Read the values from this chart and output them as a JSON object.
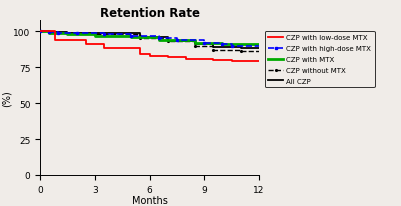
{
  "title": "Retention Rate",
  "ylabel": "(%)",
  "xlabel": "Months",
  "ylim": [
    0,
    108
  ],
  "xlim": [
    0,
    12
  ],
  "yticks": [
    0,
    25,
    50,
    75,
    100
  ],
  "xticks": [
    0,
    3,
    6,
    9,
    12
  ],
  "bg_color": "#f0ece8",
  "red_x": [
    0,
    0.8,
    0.8,
    2.5,
    2.5,
    3.5,
    3.5,
    5.5,
    5.5,
    6.0,
    6.0,
    7.0,
    7.0,
    8.0,
    8.0,
    9.5,
    9.5,
    10.5,
    10.5,
    12
  ],
  "red_y": [
    100,
    100,
    94,
    94,
    91,
    91,
    88,
    88,
    84,
    84,
    83,
    83,
    82,
    82,
    81,
    81,
    80,
    80,
    79,
    79
  ],
  "blue_x": [
    0,
    0.5,
    0.5,
    1.0,
    1.0,
    2.0,
    2.0,
    3.5,
    3.5,
    5.0,
    5.0,
    6.5,
    6.5,
    7.5,
    7.5,
    9.0,
    9.0,
    10.0,
    10.0,
    10.5,
    10.5,
    12
  ],
  "blue_y": [
    100,
    100,
    99.5,
    99.5,
    99,
    99,
    98.5,
    98.5,
    98,
    98,
    97,
    97,
    95,
    95,
    94,
    94,
    92,
    92,
    91,
    91,
    90,
    90
  ],
  "green_x": [
    0,
    0.5,
    0.5,
    1.5,
    1.5,
    3.0,
    3.0,
    5.0,
    5.0,
    6.5,
    6.5,
    8.5,
    8.5,
    10.0,
    10.0,
    12
  ],
  "green_y": [
    100,
    100,
    99,
    99,
    98,
    98,
    97,
    97,
    96,
    96,
    94,
    94,
    92,
    92,
    91,
    91
  ],
  "bdash_x": [
    0,
    0.5,
    0.5,
    1.5,
    1.5,
    3.0,
    3.0,
    5.5,
    5.5,
    7.0,
    7.0,
    8.5,
    8.5,
    9.5,
    9.5,
    11.0,
    11.0,
    12
  ],
  "bdash_y": [
    100,
    100,
    99.5,
    99.5,
    99,
    99,
    98,
    98,
    95,
    95,
    93,
    93,
    90,
    90,
    87,
    87,
    86,
    86
  ],
  "bsolid_x": [
    0,
    0.5,
    0.5,
    1.5,
    1.5,
    3.0,
    3.0,
    5.5,
    5.5,
    7.0,
    7.0,
    8.5,
    8.5,
    9.5,
    9.5,
    11.0,
    11.0,
    12
  ],
  "bsolid_y": [
    100,
    100,
    99.5,
    99.5,
    99,
    99,
    98.5,
    98.5,
    96,
    96,
    93.5,
    93.5,
    91,
    91,
    89,
    89,
    88,
    88
  ],
  "legend_labels": [
    "CZP with low-dose MTX",
    "CZP with high-dose MTX",
    "CZP with MTX",
    "CZP without MTX",
    "All CZP"
  ]
}
